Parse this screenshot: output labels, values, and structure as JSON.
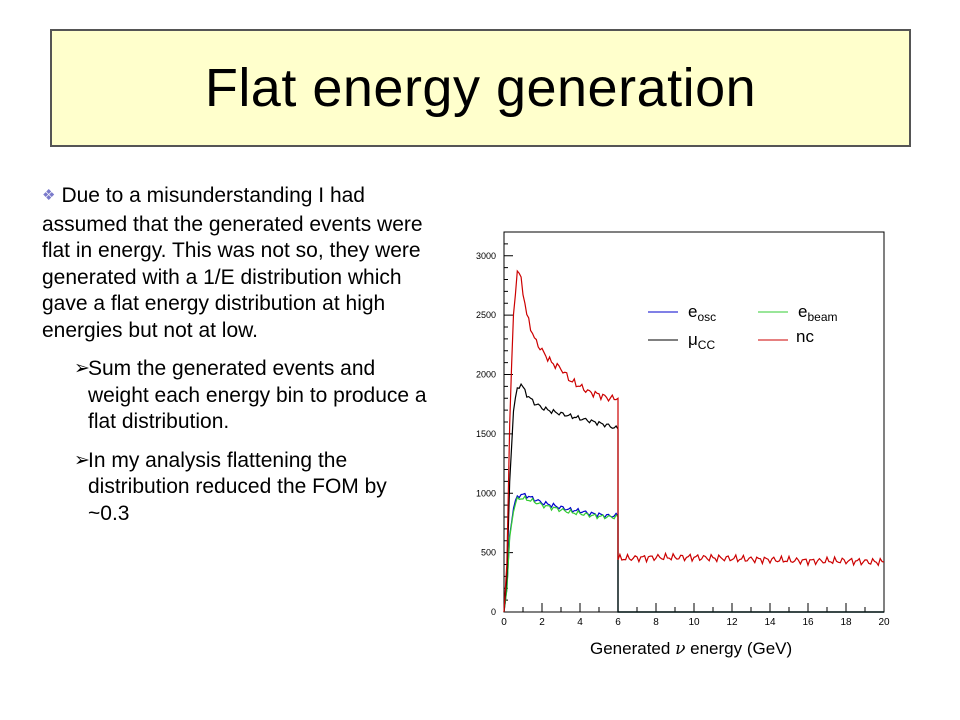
{
  "slide": {
    "title": "Flat energy generation",
    "bullet_main": "Due to a misunderstanding I had assumed that the generated events were flat in energy.  This was not so, they were generated with a 1/E distribution which gave a flat energy distribution at high energies but not at low.",
    "bullet_main_icon": "diamond-bullet-icon",
    "sub_icon": "arrow-bullet-icon",
    "sub_bullets": [
      "Sum the generated events and weight each energy bin to produce a flat distribution.",
      "In my analysis flattening the distribution reduced the FOM by ~0.3"
    ]
  },
  "colors": {
    "title_bg": "#ffffcc",
    "e_osc": "#0000cc",
    "e_beam": "#33cc33",
    "mu_cc": "#000000",
    "nc": "#cc0000"
  },
  "chart_data": {
    "type": "line",
    "xlabel_pre": "Generated",
    "xlabel_symbol": "ν",
    "xlabel_post": "energy (GeV)",
    "xlim": [
      0,
      20
    ],
    "ylim": [
      0,
      3200
    ],
    "xticks": [
      0,
      2,
      4,
      6,
      8,
      10,
      12,
      14,
      16,
      18,
      20
    ],
    "yticks": [
      0,
      500,
      1000,
      1500,
      2000,
      2500,
      3000
    ],
    "legend_placement": "top-right",
    "series": [
      {
        "key": "e_osc",
        "name_main": "e",
        "name_sub": "osc",
        "color": "#0000cc",
        "x": [
          0,
          0.15,
          0.3,
          0.5,
          0.7,
          0.9,
          1.2,
          1.6,
          2.0,
          2.5,
          3.0,
          3.5,
          4.0,
          4.5,
          5.0,
          5.5,
          6.0,
          6.001,
          20
        ],
        "y": [
          0,
          200,
          650,
          880,
          970,
          990,
          980,
          950,
          920,
          900,
          880,
          860,
          850,
          830,
          820,
          810,
          810,
          0,
          0
        ]
      },
      {
        "key": "e_beam",
        "name_main": "e",
        "name_sub": "beam",
        "color": "#33cc33",
        "x": [
          0,
          0.15,
          0.3,
          0.5,
          0.7,
          0.9,
          1.2,
          1.6,
          2.0,
          2.5,
          3.0,
          3.5,
          4.0,
          4.5,
          5.0,
          5.5,
          6.0,
          6.001,
          20
        ],
        "y": [
          0,
          180,
          620,
          860,
          950,
          960,
          950,
          930,
          900,
          880,
          860,
          840,
          830,
          815,
          805,
          800,
          800,
          0,
          0
        ]
      },
      {
        "key": "mu_cc",
        "name_main": "μ",
        "name_sub": "CC",
        "color": "#000000",
        "x": [
          0,
          0.15,
          0.3,
          0.5,
          0.7,
          0.9,
          1.2,
          1.6,
          2.0,
          2.5,
          3.0,
          3.5,
          4.0,
          4.5,
          5.0,
          5.5,
          6.0,
          6.001,
          20
        ],
        "y": [
          0,
          300,
          1100,
          1700,
          1880,
          1920,
          1830,
          1760,
          1720,
          1690,
          1670,
          1650,
          1630,
          1610,
          1590,
          1570,
          1540,
          0,
          0
        ]
      },
      {
        "key": "nc",
        "name_main": "nc",
        "name_sub": "",
        "color": "#cc0000",
        "x": [
          0,
          0.15,
          0.3,
          0.5,
          0.7,
          0.9,
          1.2,
          1.6,
          2.0,
          2.5,
          3.0,
          3.5,
          4.0,
          4.5,
          5.0,
          5.5,
          6.0,
          6.001,
          8,
          10,
          12,
          14,
          16,
          18,
          20
        ],
        "y": [
          0,
          400,
          1600,
          2500,
          2880,
          2800,
          2500,
          2300,
          2200,
          2100,
          2050,
          1950,
          1900,
          1850,
          1830,
          1800,
          1800,
          450,
          460,
          460,
          450,
          440,
          430,
          430,
          420
        ]
      }
    ]
  }
}
